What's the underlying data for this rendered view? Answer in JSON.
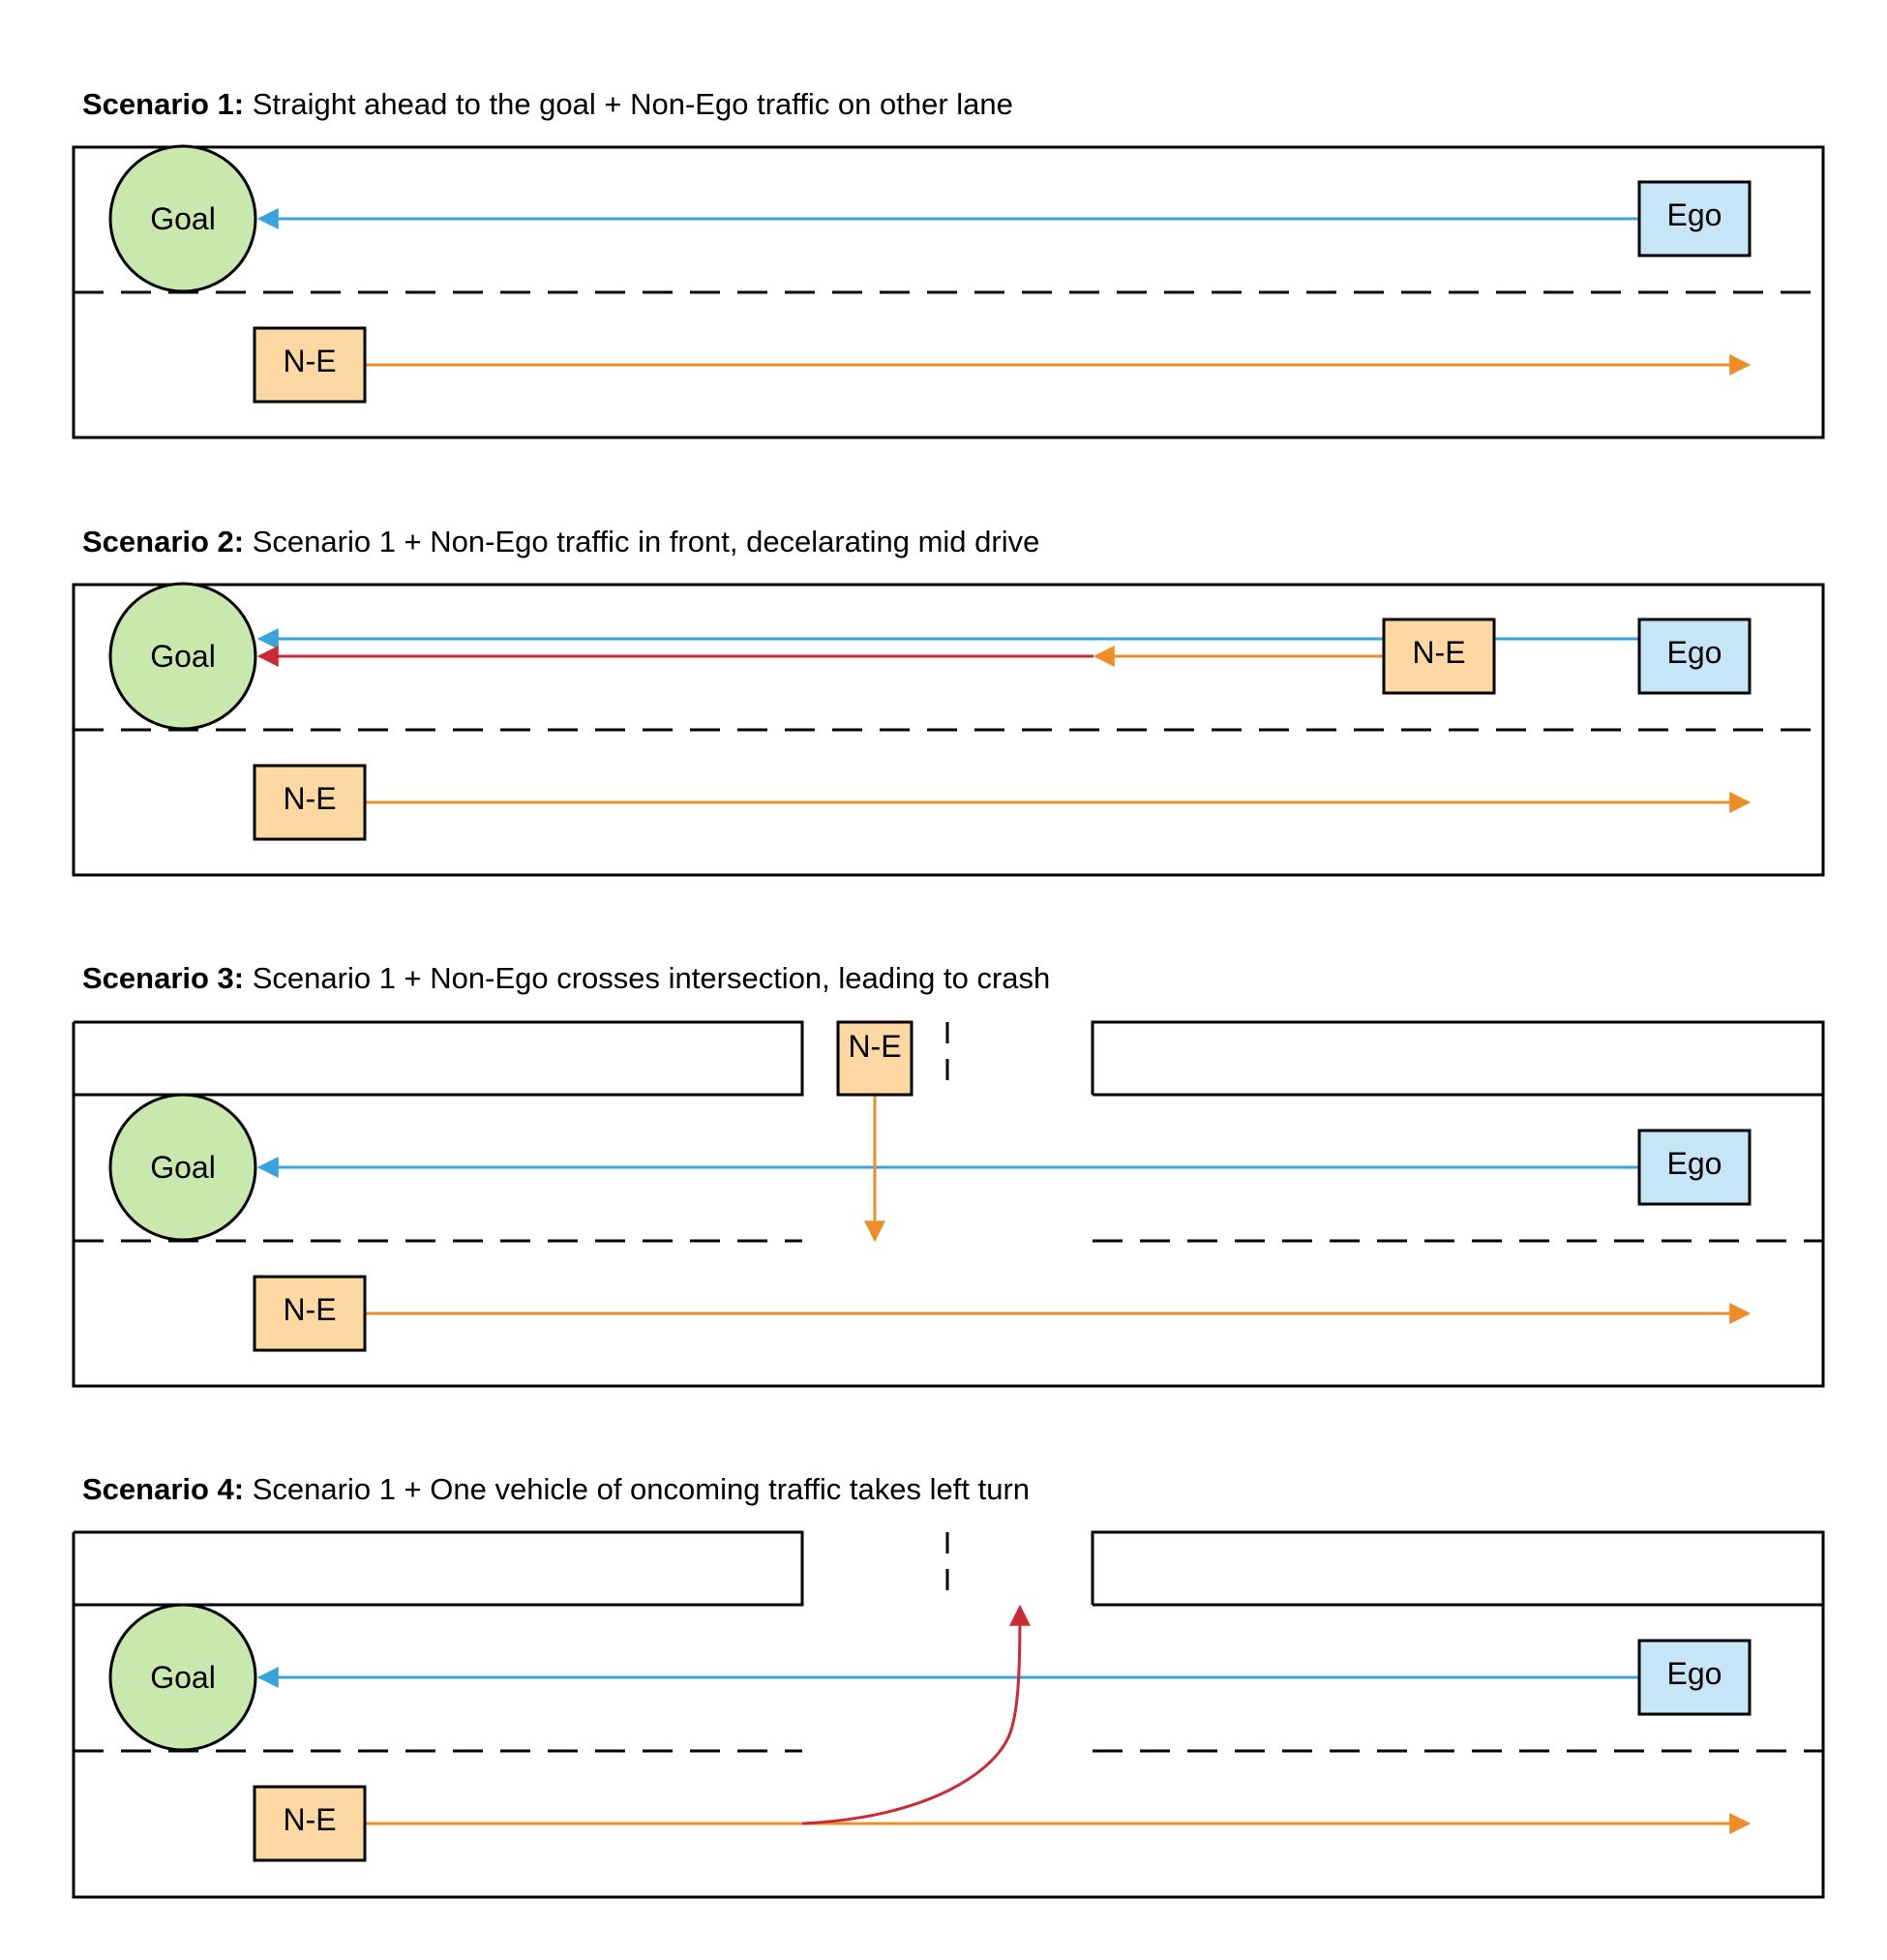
{
  "colors": {
    "road_border": "#000000",
    "ego_arrow": "#3aa3dc",
    "non_ego_arrow": "#ee8c27",
    "crash_arrow": "#cc2936",
    "goal_fill": "#c9e8ae",
    "ego_fill": "#c6e5f7",
    "non_ego_fill": "#fdd8a2"
  },
  "labels": {
    "goal": "Goal",
    "ego": "Ego",
    "non_ego": "N-E"
  },
  "scenarios": [
    {
      "title_bold": "Scenario 1:",
      "title_rest": " Straight ahead to the goal + Non-Ego traffic on other lane"
    },
    {
      "title_bold": "Scenario 2:",
      "title_rest": " Scenario 1 + Non-Ego traffic in front, decelarating mid drive"
    },
    {
      "title_bold": "Scenario 3:",
      "title_rest": " Scenario 1 + Non-Ego crosses intersection, leading to crash"
    },
    {
      "title_bold": "Scenario 4:",
      "title_rest": " Scenario 1 + One vehicle of oncoming traffic takes left turn"
    }
  ]
}
